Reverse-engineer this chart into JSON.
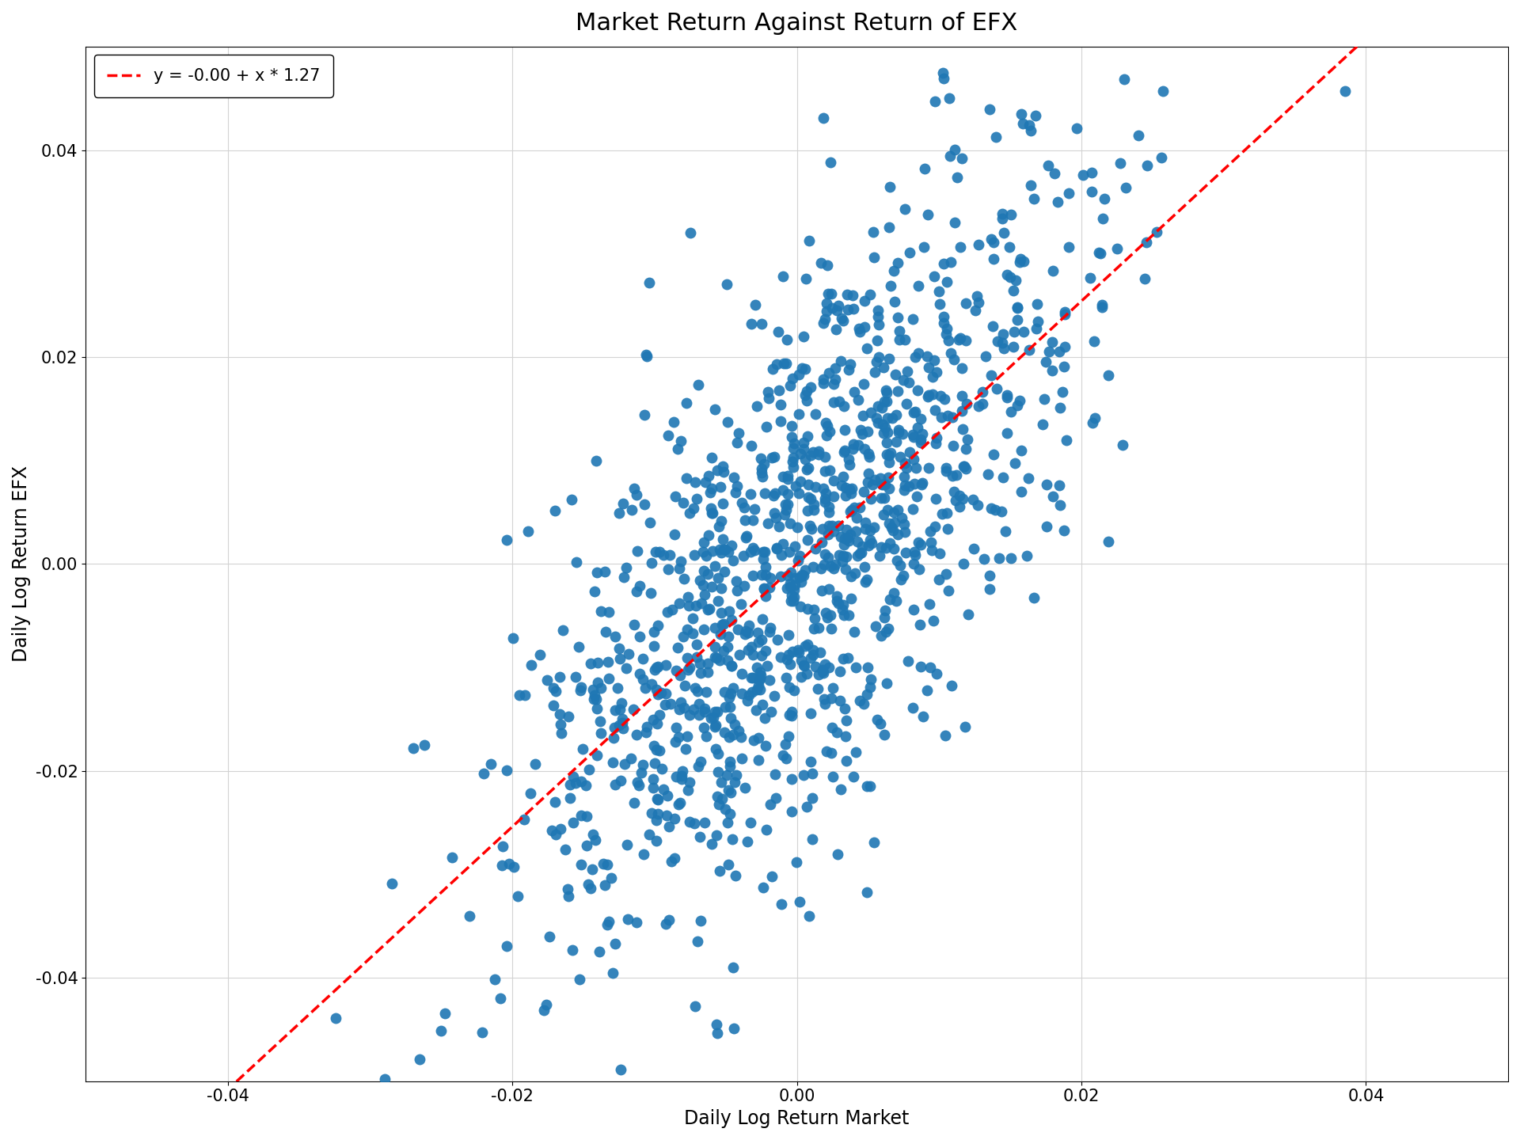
{
  "title": "Market Return Against Return of EFX",
  "xlabel": "Daily Log Return Market",
  "ylabel": "Daily Log Return EFX",
  "xlim": [
    -0.05,
    0.05
  ],
  "ylim": [
    -0.05,
    0.05
  ],
  "intercept": 0.0,
  "slope": 1.27,
  "legend_label": "y = -0.00 + x * 1.27",
  "scatter_color": "#1f77b4",
  "line_color": "#ff0000",
  "marker_size": 10,
  "seed": 42,
  "n_points": 1200,
  "market_std": 0.01,
  "noise_std": 0.013,
  "title_fontsize": 22,
  "label_fontsize": 17,
  "tick_fontsize": 15,
  "legend_fontsize": 15
}
